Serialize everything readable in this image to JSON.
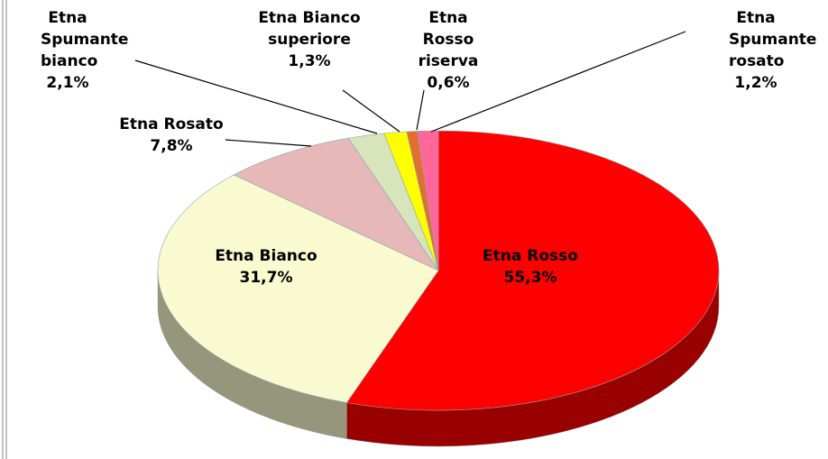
{
  "chart_data": {
    "type": "pie",
    "categories": [
      "Etna Rosso",
      "Etna Bianco",
      "Etna Rosato",
      "Etna Spumante bianco",
      "Etna Bianco superiore",
      "Etna Rosso riserva",
      "Etna Spumante rosato"
    ],
    "values": [
      55.3,
      31.7,
      7.8,
      2.1,
      1.3,
      0.6,
      1.2
    ],
    "value_labels": [
      "55,3%",
      "31,7%",
      "7,8%",
      "2,1%",
      "1,3%",
      "0,6%",
      "1,2%"
    ],
    "colors": [
      "#ff0000",
      "#fafad0",
      "#e6b8b7",
      "#d8e4bc",
      "#ffff00",
      "#e07030",
      "#ff6699"
    ]
  }
}
